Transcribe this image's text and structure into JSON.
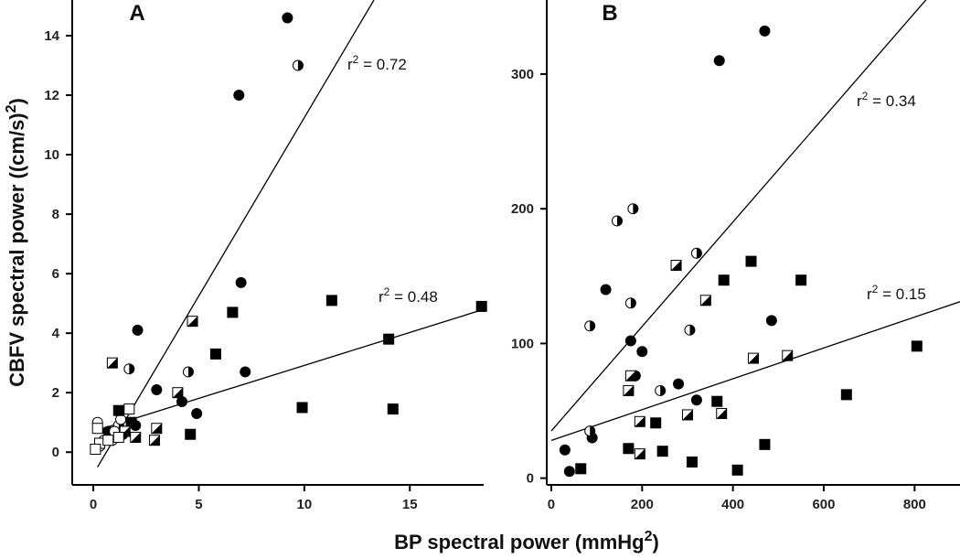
{
  "xlabel": "BP spectral power (mmHg2)",
  "xlabel_main": "BP spectral power (mmHg",
  "xlabel_sup": "2",
  "xlabel_end": ")",
  "ylabel_main": "CBFV spectral power ((cm/s)",
  "ylabel_sup": "2",
  "ylabel_end": ")",
  "chart_data": [
    {
      "type": "scatter",
      "panel": "A",
      "xlim": [
        -1,
        18.5
      ],
      "ylim": [
        -1.1,
        15.2
      ],
      "xticks": [
        0,
        5,
        10,
        15
      ],
      "yticks": [
        0,
        2,
        4,
        6,
        8,
        10,
        12,
        14
      ],
      "fit_lines": [
        {
          "x": [
            0.2,
            13.3
          ],
          "y": [
            -0.5,
            15.2
          ],
          "annotation": "r2 = 0.72",
          "label": "r",
          "sup": "2",
          "value": " = 0.72"
        },
        {
          "x": [
            0,
            18.5
          ],
          "y": [
            0.7,
            4.8
          ],
          "annotation": "r2 = 0.48",
          "label": "r",
          "sup": "2",
          "value": " = 0.48"
        }
      ],
      "series": [
        {
          "marker": "filled-circle",
          "points": [
            [
              9.2,
              14.6
            ],
            [
              6.9,
              12.0
            ],
            [
              7.0,
              5.7
            ],
            [
              2.1,
              4.1
            ],
            [
              7.2,
              2.7
            ],
            [
              3.0,
              2.1
            ],
            [
              4.2,
              1.7
            ],
            [
              4.9,
              1.3
            ],
            [
              2.0,
              0.9
            ],
            [
              0.7,
              0.7
            ]
          ]
        },
        {
          "marker": "half-circle",
          "points": [
            [
              9.7,
              13.0
            ],
            [
              1.7,
              2.8
            ],
            [
              4.5,
              2.7
            ],
            [
              1.2,
              0.9
            ],
            [
              1.4,
              0.6
            ]
          ]
        },
        {
          "marker": "open-circle",
          "points": [
            [
              0.2,
              1.0
            ],
            [
              1.3,
              1.1
            ],
            [
              0.5,
              0.4
            ],
            [
              0.9,
              0.4
            ],
            [
              0.3,
              0.2
            ],
            [
              1.0,
              0.7
            ],
            [
              0.1,
              0.1
            ]
          ]
        },
        {
          "marker": "filled-square",
          "points": [
            [
              18.4,
              4.9
            ],
            [
              11.3,
              5.1
            ],
            [
              6.6,
              4.7
            ],
            [
              14.0,
              3.8
            ],
            [
              5.8,
              3.3
            ],
            [
              9.9,
              1.5
            ],
            [
              14.2,
              1.45
            ],
            [
              4.6,
              0.6
            ],
            [
              1.2,
              1.4
            ],
            [
              1.8,
              1.0
            ]
          ]
        },
        {
          "marker": "half-square",
          "points": [
            [
              0.9,
              3.0
            ],
            [
              4.7,
              4.4
            ],
            [
              4.0,
              2.0
            ],
            [
              3.0,
              0.8
            ],
            [
              2.9,
              0.4
            ],
            [
              2.0,
              0.5
            ],
            [
              1.5,
              0.7
            ]
          ]
        },
        {
          "marker": "open-square",
          "points": [
            [
              1.7,
              1.45
            ],
            [
              0.2,
              0.8
            ],
            [
              0.3,
              0.3
            ],
            [
              0.1,
              0.1
            ],
            [
              1.2,
              0.5
            ],
            [
              0.7,
              0.4
            ]
          ]
        }
      ]
    },
    {
      "type": "scatter",
      "panel": "B",
      "xlim": [
        -10,
        900
      ],
      "ylim": [
        -5,
        355
      ],
      "xticks": [
        0,
        200,
        400,
        600,
        800
      ],
      "yticks": [
        0,
        100,
        200,
        300
      ],
      "fit_lines": [
        {
          "x": [
            0,
            830
          ],
          "y": [
            35,
            357
          ],
          "annotation": "r2 = 0.34",
          "label": "r",
          "sup": "2",
          "value": " = 0.34"
        },
        {
          "x": [
            0,
            900
          ],
          "y": [
            28,
            131
          ],
          "annotation": "r2 = 0.15",
          "label": "r",
          "sup": "2",
          "value": " = 0.15"
        }
      ],
      "series": [
        {
          "marker": "filled-circle",
          "points": [
            [
              470,
              332
            ],
            [
              370,
              310
            ],
            [
              120,
              140
            ],
            [
              485,
              117
            ],
            [
              175,
              102
            ],
            [
              200,
              94
            ],
            [
              280,
              70
            ],
            [
              320,
              58
            ],
            [
              30,
              21
            ],
            [
              90,
              30
            ],
            [
              40,
              5
            ]
          ]
        },
        {
          "marker": "half-circle",
          "points": [
            [
              145,
              191
            ],
            [
              180,
              200
            ],
            [
              320,
              167
            ],
            [
              175,
              130
            ],
            [
              85,
              113
            ],
            [
              305,
              110
            ],
            [
              185,
              76
            ],
            [
              240,
              65
            ],
            [
              85,
              35
            ]
          ]
        },
        {
          "marker": "filled-square",
          "points": [
            [
              440,
              161
            ],
            [
              380,
              147
            ],
            [
              550,
              147
            ],
            [
              805,
              98
            ],
            [
              650,
              62
            ],
            [
              365,
              57
            ],
            [
              230,
              41
            ],
            [
              170,
              22
            ],
            [
              245,
              20
            ],
            [
              470,
              25
            ],
            [
              310,
              12
            ],
            [
              65,
              7
            ],
            [
              410,
              6
            ]
          ]
        },
        {
          "marker": "half-square",
          "points": [
            [
              275,
              158
            ],
            [
              340,
              132
            ],
            [
              445,
              89
            ],
            [
              520,
              91
            ],
            [
              175,
              76
            ],
            [
              170,
              65
            ],
            [
              195,
              42
            ],
            [
              300,
              47
            ],
            [
              375,
              48
            ],
            [
              195,
              18
            ]
          ]
        }
      ]
    }
  ]
}
